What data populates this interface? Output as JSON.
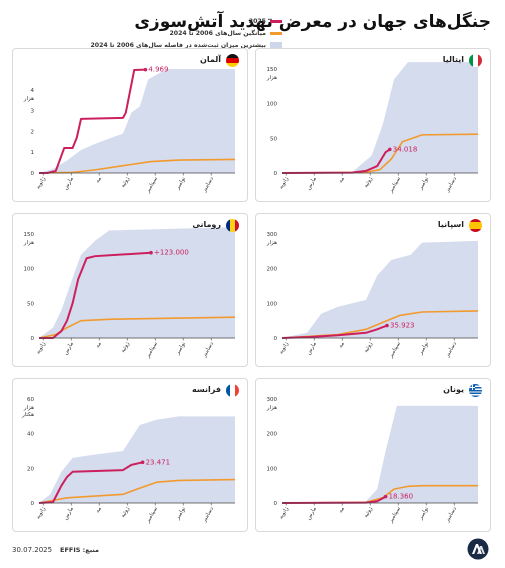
{
  "title": "جنگل‌های جهان در معرض تهدید آتش‌سوزی",
  "legend": {
    "items": [
      {
        "label": "2025",
        "color": "#cc1f5e",
        "kind": "line"
      },
      {
        "label": "میانگین سال‌های 2006 تا 2024",
        "color": "#f29a2e",
        "kind": "line"
      },
      {
        "label": "بیشترین میزان ثبت‌شده در فاصله سال‌های 2006 تا 2024",
        "color": "#cdd6ea",
        "kind": "band"
      }
    ]
  },
  "months": [
    "ژانویه",
    "مارس",
    "مه",
    "ژوئیه",
    "سپتامبر",
    "نوامبر",
    "دسامبر"
  ],
  "colors": {
    "line2025": "#cc1f5e",
    "average": "#f29a2e",
    "band": "#cdd6ea",
    "axis": "#444444"
  },
  "footer": {
    "date": "30.07.2025",
    "source": "منبع: EFFIS",
    "logo_text": "AA"
  },
  "chart_data": [
    {
      "type": "area",
      "country": "آلمان",
      "flag": "germany",
      "ylim": [
        0,
        5
      ],
      "yticks": [
        0,
        1,
        2,
        3,
        4
      ],
      "unit_label": "هزار",
      "unit_label2": "",
      "last_label": "4.969",
      "series_2025": [
        [
          0,
          0
        ],
        [
          0.3,
          0
        ],
        [
          0.6,
          0.1
        ],
        [
          0.9,
          1.2
        ],
        [
          1.2,
          1.2
        ],
        [
          1.35,
          1.7
        ],
        [
          1.5,
          2.6
        ],
        [
          3.0,
          2.65
        ],
        [
          3.1,
          2.9
        ],
        [
          3.4,
          4.95
        ],
        [
          3.8,
          4.969
        ]
      ],
      "series_avg": [
        [
          0,
          0
        ],
        [
          1.2,
          0.03
        ],
        [
          2.0,
          0.15
        ],
        [
          3.0,
          0.35
        ],
        [
          4.0,
          0.55
        ],
        [
          5.0,
          0.62
        ],
        [
          7.0,
          0.65
        ]
      ],
      "band_max": [
        [
          0,
          0
        ],
        [
          0.5,
          0.2
        ],
        [
          1.0,
          0.6
        ],
        [
          1.5,
          1.1
        ],
        [
          2.0,
          1.4
        ],
        [
          3.0,
          1.9
        ],
        [
          3.3,
          2.9
        ],
        [
          3.6,
          3.2
        ],
        [
          3.9,
          4.5
        ],
        [
          4.3,
          4.8
        ],
        [
          4.6,
          5.0
        ],
        [
          7.0,
          5.0
        ]
      ]
    },
    {
      "type": "area",
      "country": "ایتالیا",
      "flag": "italy",
      "ylim": [
        0,
        150
      ],
      "yticks": [
        0,
        50,
        100,
        150
      ],
      "unit_label": "هزار",
      "unit_label2": "",
      "last_label": "34.018",
      "series_2025": [
        [
          0,
          0
        ],
        [
          2.5,
          0.5
        ],
        [
          3.0,
          3
        ],
        [
          3.4,
          10
        ],
        [
          3.7,
          30
        ],
        [
          3.85,
          34.018
        ]
      ],
      "series_avg": [
        [
          0,
          0
        ],
        [
          3.0,
          1
        ],
        [
          3.5,
          5
        ],
        [
          3.9,
          20
        ],
        [
          4.3,
          45
        ],
        [
          5.0,
          55
        ],
        [
          7.0,
          56
        ]
      ],
      "band_max": [
        [
          0,
          0
        ],
        [
          2.5,
          1
        ],
        [
          3.2,
          25
        ],
        [
          3.6,
          70
        ],
        [
          4.0,
          135
        ],
        [
          4.5,
          160
        ],
        [
          7.0,
          160
        ]
      ]
    },
    {
      "type": "area",
      "country": "رومانی",
      "flag": "romania",
      "ylim": [
        0,
        150
      ],
      "yticks": [
        0,
        50,
        100,
        150
      ],
      "unit_label": "هزار",
      "unit_label2": "",
      "last_label": "+123.000",
      "series_2025": [
        [
          0,
          0
        ],
        [
          0.5,
          0
        ],
        [
          0.8,
          10
        ],
        [
          1.0,
          25
        ],
        [
          1.2,
          50
        ],
        [
          1.4,
          85
        ],
        [
          1.7,
          115
        ],
        [
          2.0,
          118
        ],
        [
          4.0,
          123
        ]
      ],
      "series_avg": [
        [
          0,
          0
        ],
        [
          0.6,
          5
        ],
        [
          1.0,
          15
        ],
        [
          1.5,
          25
        ],
        [
          2.5,
          27
        ],
        [
          4.0,
          28
        ],
        [
          7.0,
          30
        ]
      ],
      "band_max": [
        [
          0,
          0
        ],
        [
          0.5,
          15
        ],
        [
          0.8,
          40
        ],
        [
          1.1,
          75
        ],
        [
          1.5,
          120
        ],
        [
          2.0,
          140
        ],
        [
          2.5,
          155
        ],
        [
          7.0,
          160
        ]
      ]
    },
    {
      "type": "area",
      "country": "اسپانیا",
      "flag": "spain",
      "ylim": [
        0,
        300
      ],
      "yticks": [
        0,
        100,
        200,
        300
      ],
      "unit_label": "هزار",
      "unit_label2": "",
      "last_label": "35.923",
      "series_2025": [
        [
          0,
          0
        ],
        [
          1.0,
          3
        ],
        [
          2.0,
          8
        ],
        [
          3.0,
          15
        ],
        [
          3.4,
          25
        ],
        [
          3.75,
          35.923
        ]
      ],
      "series_avg": [
        [
          0,
          0
        ],
        [
          2.0,
          10
        ],
        [
          3.0,
          25
        ],
        [
          3.6,
          45
        ],
        [
          4.2,
          65
        ],
        [
          5.0,
          75
        ],
        [
          7.0,
          78
        ]
      ],
      "band_max": [
        [
          0,
          0
        ],
        [
          0.9,
          15
        ],
        [
          1.4,
          70
        ],
        [
          2.0,
          90
        ],
        [
          3.0,
          110
        ],
        [
          3.4,
          180
        ],
        [
          3.9,
          225
        ],
        [
          4.6,
          240
        ],
        [
          5.0,
          275
        ],
        [
          7.0,
          280
        ]
      ]
    },
    {
      "type": "area",
      "country": "فرانسه",
      "flag": "france",
      "ylim": [
        0,
        60
      ],
      "yticks": [
        0,
        20,
        40,
        60
      ],
      "unit_label": "هزار",
      "unit_label2": "هکتار",
      "last_label": "23.471",
      "series_2025": [
        [
          0,
          0
        ],
        [
          0.5,
          0.5
        ],
        [
          0.8,
          10
        ],
        [
          1.0,
          15
        ],
        [
          1.2,
          18
        ],
        [
          3.0,
          19
        ],
        [
          3.3,
          22
        ],
        [
          3.7,
          23.471
        ]
      ],
      "series_avg": [
        [
          0,
          0
        ],
        [
          1.0,
          3
        ],
        [
          2.0,
          4
        ],
        [
          3.0,
          5
        ],
        [
          3.5,
          8
        ],
        [
          4.2,
          12
        ],
        [
          5.0,
          13
        ],
        [
          7.0,
          13.5
        ]
      ],
      "band_max": [
        [
          0,
          0
        ],
        [
          0.4,
          5
        ],
        [
          0.8,
          18
        ],
        [
          1.2,
          26
        ],
        [
          2.0,
          28
        ],
        [
          3.0,
          30
        ],
        [
          3.6,
          45
        ],
        [
          4.2,
          48
        ],
        [
          5.0,
          50
        ],
        [
          7.0,
          50
        ]
      ]
    },
    {
      "type": "area",
      "country": "یونان",
      "flag": "greece",
      "ylim": [
        0,
        300
      ],
      "yticks": [
        0,
        100,
        200,
        300
      ],
      "unit_label": "هزار",
      "unit_label2": "",
      "last_label": "18.360",
      "series_2025": [
        [
          0,
          0
        ],
        [
          3.0,
          1
        ],
        [
          3.4,
          5
        ],
        [
          3.7,
          18.36
        ]
      ],
      "series_avg": [
        [
          0,
          0
        ],
        [
          3.0,
          2
        ],
        [
          3.6,
          15
        ],
        [
          4.0,
          40
        ],
        [
          4.5,
          48
        ],
        [
          5.0,
          50
        ],
        [
          7.0,
          50
        ]
      ],
      "band_max": [
        [
          0,
          0
        ],
        [
          3.0,
          5
        ],
        [
          3.4,
          40
        ],
        [
          3.7,
          150
        ],
        [
          4.1,
          280
        ],
        [
          7.0,
          280
        ]
      ]
    }
  ]
}
